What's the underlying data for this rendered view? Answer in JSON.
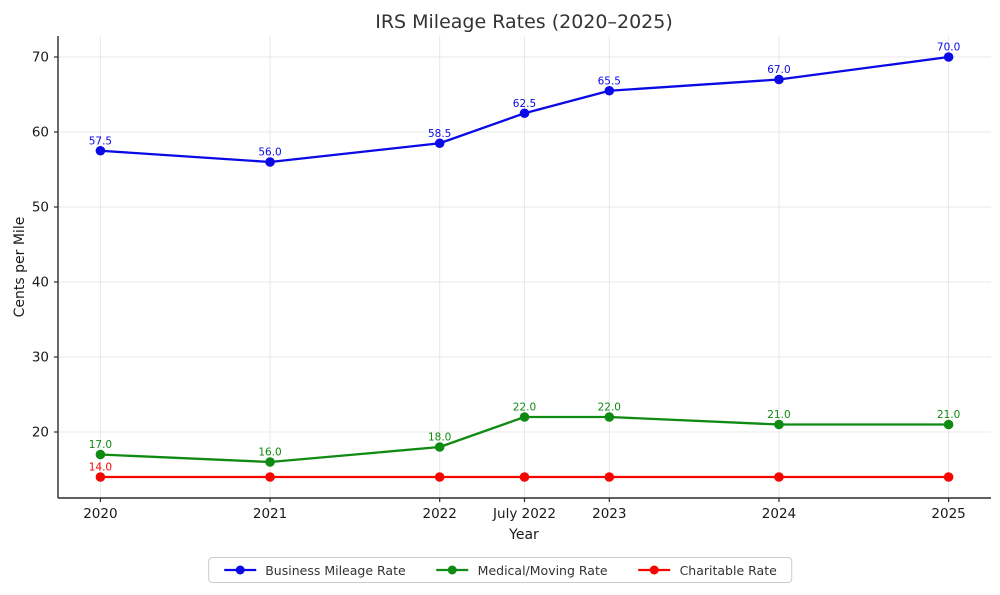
{
  "figure": {
    "title": "IRS Mileage Rates (2020–2025)",
    "xlabel": "Year",
    "ylabel": "Cents per Mile"
  },
  "chart_data": {
    "type": "line",
    "title": "IRS Mileage Rates (2020–2025)",
    "xlabel": "Year",
    "ylabel": "Cents per Mile",
    "x_tick_labels": [
      "2020",
      "2021",
      "2022",
      "July 2022",
      "2023",
      "2024",
      "2025"
    ],
    "x": [
      2020,
      2021,
      2022,
      2022.5,
      2023,
      2024,
      2025
    ],
    "xlim": [
      2019.75,
      2025.25
    ],
    "ylim": [
      11.2,
      72.8
    ],
    "y_ticks": [
      20,
      30,
      40,
      50,
      60,
      70
    ],
    "grid": true,
    "legend_position": "bottom-center-outside",
    "series": [
      {
        "name": "Business Mileage Rate",
        "color": "#0a0ae6",
        "values": [
          57.5,
          56.0,
          58.5,
          62.5,
          65.5,
          67.0,
          70.0
        ],
        "point_labels": [
          "57.5",
          "56.0",
          "58.5",
          "62.5",
          "65.5",
          "67.0",
          "70.0"
        ]
      },
      {
        "name": "Medical/Moving Rate",
        "color": "#0f8a12",
        "values": [
          17.0,
          16.0,
          18.0,
          22.0,
          22.0,
          21.0,
          21.0
        ],
        "point_labels": [
          "17.0",
          "16.0",
          "18.0",
          "22.0",
          "22.0",
          "21.0",
          "21.0"
        ]
      },
      {
        "name": "Charitable Rate",
        "color": "#f50400",
        "values": [
          14.0,
          14.0,
          14.0,
          14.0,
          14.0,
          14.0,
          14.0
        ],
        "point_labels": [
          "14.0",
          "",
          "",
          "",
          "",
          "",
          ""
        ]
      }
    ],
    "style": {
      "grid_color": "#e8e8e8",
      "spine_color": "#2b2b2b",
      "tick_text_color": "#1a1a1a",
      "title_color": "#333333"
    }
  }
}
